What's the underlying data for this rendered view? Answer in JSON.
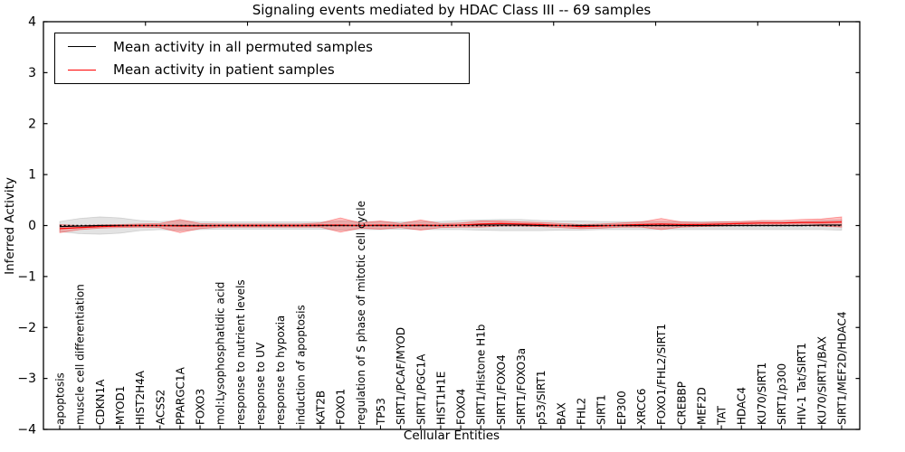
{
  "figure": {
    "background": "#ffffff"
  },
  "chart_data": {
    "type": "line",
    "title": "Signaling events mediated by HDAC Class III -- 69 samples",
    "xlabel": "Cellular Entities",
    "ylabel": "Inferred Activity",
    "ylim": [
      -4,
      4
    ],
    "yticks": [
      4,
      3,
      2,
      1,
      0,
      -1,
      -2,
      -3,
      -4
    ],
    "top_axis_ticks": [
      5,
      10,
      15,
      20,
      25,
      30,
      35,
      39
    ],
    "grid": false,
    "legend_position": "upper left",
    "zero_reference_line": {
      "value": 0,
      "style": "dotted",
      "color": "#000000"
    },
    "categories": [
      "apoptosis",
      "muscle cell differentiation",
      "CDKN1A",
      "MYOD1",
      "HIST2H4A",
      "ACSS2",
      "PPARGC1A",
      "FOXO3",
      "mol:Lysophosphatidic acid",
      "response to nutrient levels",
      "response to UV",
      "response to hypoxia",
      "induction of apoptosis",
      "KAT2B",
      "FOXO1",
      "regulation of S phase of mitotic cell cycle",
      "TP53",
      "SIRT1/PCAF/MYOD",
      "SIRT1/PGC1A",
      "HIST1H1E",
      "FOXO4",
      "SIRT1/Histone H1b",
      "SIRT1/FOXO4",
      "SIRT1/FOXO3a",
      "p53/SIRT1",
      "BAX",
      "FHL2",
      "SIRT1",
      "EP300",
      "XRCC6",
      "FOXO1/FHL2/SIRT1",
      "CREBBP",
      "MEF2D",
      "TAT",
      "HDAC4",
      "KU70/SIRT1",
      "SIRT1/p300",
      "HIV-1 Tat/SIRT1",
      "KU70/SIRT1/BAX",
      "SIRT1/MEF2D/HDAC4"
    ],
    "series": [
      {
        "name": "Mean activity in all permuted samples",
        "color": "#000000",
        "band_color": "#999999",
        "values": [
          -0.02,
          -0.01,
          0,
          0,
          0,
          0,
          0,
          0,
          0,
          0,
          0,
          0,
          0,
          0,
          0,
          0,
          0,
          0,
          0,
          0,
          0.01,
          0.01,
          0.01,
          0.01,
          0,
          0,
          0,
          0,
          0,
          0,
          0,
          0,
          0,
          0,
          0,
          0,
          0,
          0,
          0.01,
          0.01
        ],
        "band_halfwidth": [
          0.1,
          0.15,
          0.17,
          0.15,
          0.1,
          0.08,
          0.1,
          0.08,
          0.07,
          0.07,
          0.07,
          0.07,
          0.07,
          0.07,
          0.09,
          0.08,
          0.08,
          0.07,
          0.08,
          0.08,
          0.09,
          0.1,
          0.11,
          0.11,
          0.1,
          0.09,
          0.09,
          0.08,
          0.08,
          0.08,
          0.08,
          0.08,
          0.08,
          0.08,
          0.08,
          0.08,
          0.08,
          0.08,
          0.09,
          0.1
        ]
      },
      {
        "name": "Mean activity in patient samples",
        "color": "#ff0000",
        "band_color": "#ff0000",
        "values": [
          -0.06,
          -0.04,
          -0.02,
          -0.01,
          0,
          0,
          -0.01,
          -0.01,
          0,
          0,
          0,
          0,
          0,
          0.01,
          0.01,
          0,
          0.01,
          0,
          0.01,
          0,
          0.01,
          0.03,
          0.04,
          0.03,
          0.02,
          0,
          -0.02,
          -0.01,
          0.01,
          0.02,
          0.03,
          0.02,
          0.02,
          0.03,
          0.04,
          0.05,
          0.05,
          0.06,
          0.06,
          0.07
        ],
        "band_halfwidth": [
          0.08,
          0.04,
          0.03,
          0.03,
          0.03,
          0.04,
          0.13,
          0.05,
          0.03,
          0.03,
          0.03,
          0.03,
          0.03,
          0.04,
          0.14,
          0.05,
          0.08,
          0.04,
          0.1,
          0.04,
          0.04,
          0.06,
          0.05,
          0.04,
          0.04,
          0.04,
          0.04,
          0.04,
          0.04,
          0.05,
          0.11,
          0.05,
          0.04,
          0.04,
          0.04,
          0.05,
          0.05,
          0.06,
          0.07,
          0.1
        ]
      }
    ]
  }
}
